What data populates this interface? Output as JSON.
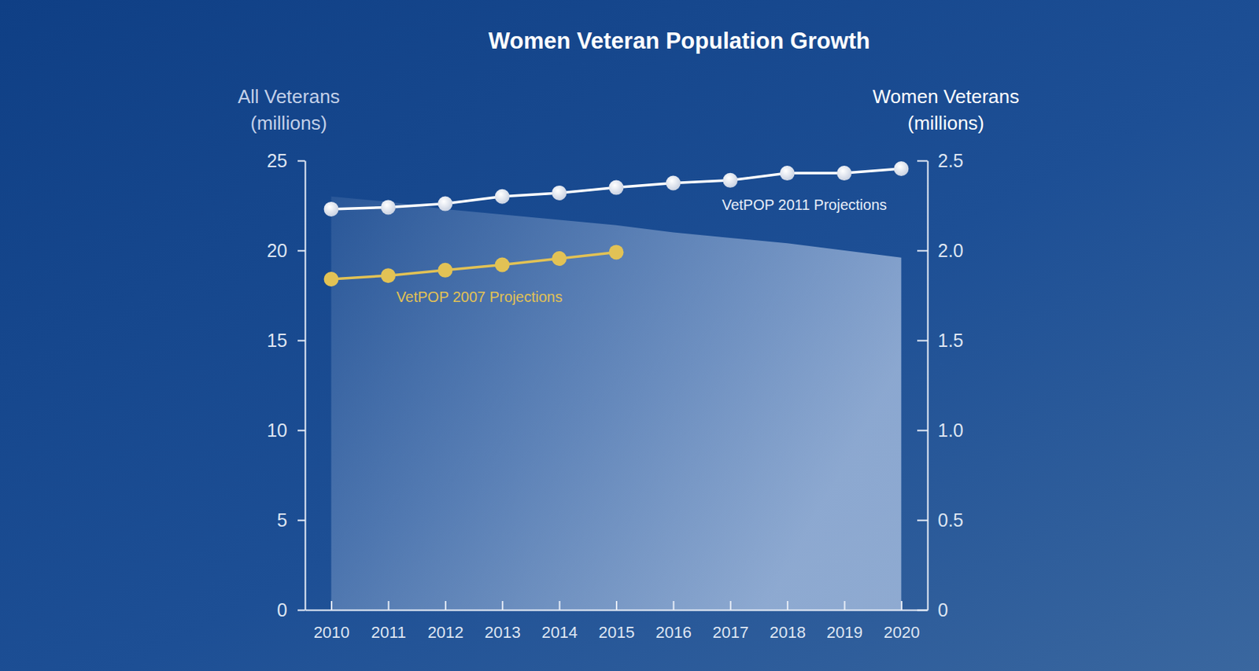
{
  "chart_data": {
    "type": "line",
    "title": "Women Veteran Population Growth",
    "y_label": "All Veterans (millions)",
    "y2_label": "Women Veterans (millions)",
    "categories": [
      "2010",
      "2011",
      "2012",
      "2013",
      "2014",
      "2015",
      "2016",
      "2017",
      "2018",
      "2019",
      "2020"
    ],
    "series": [
      {
        "type": "area",
        "color": "#b4c8e6",
        "axis": "y",
        "values": [
          23.0,
          22.7,
          22.3,
          22.0,
          21.7,
          21.4,
          21.0,
          20.7,
          20.4,
          20.0,
          19.6
        ]
      },
      {
        "name": "VetPOP 2011 Projections",
        "type": "line",
        "color": "#ffffff",
        "marker": "circle",
        "axis": "y2",
        "values": [
          2.23,
          2.24,
          2.26,
          2.3,
          2.32,
          2.35,
          2.375,
          2.39,
          2.43,
          2.43,
          2.455
        ]
      },
      {
        "name": "VetPOP 2007 Projections",
        "type": "line",
        "color": "#e2c255",
        "marker": "circle",
        "axis": "y2",
        "values": [
          1.84,
          1.86,
          1.89,
          1.92,
          1.955,
          1.99,
          null,
          null,
          null,
          null,
          null
        ]
      }
    ],
    "ylim": [
      0,
      25
    ],
    "yticks": [
      0,
      5,
      10,
      15,
      20,
      25
    ],
    "y2lim": [
      0,
      2.5
    ],
    "y2ticks": [
      0,
      0.5,
      {
        "value": 1,
        "label": "1.0"
      },
      1.5,
      {
        "value": 2,
        "label": "2.0"
      },
      2.5
    ],
    "grid": false
  }
}
